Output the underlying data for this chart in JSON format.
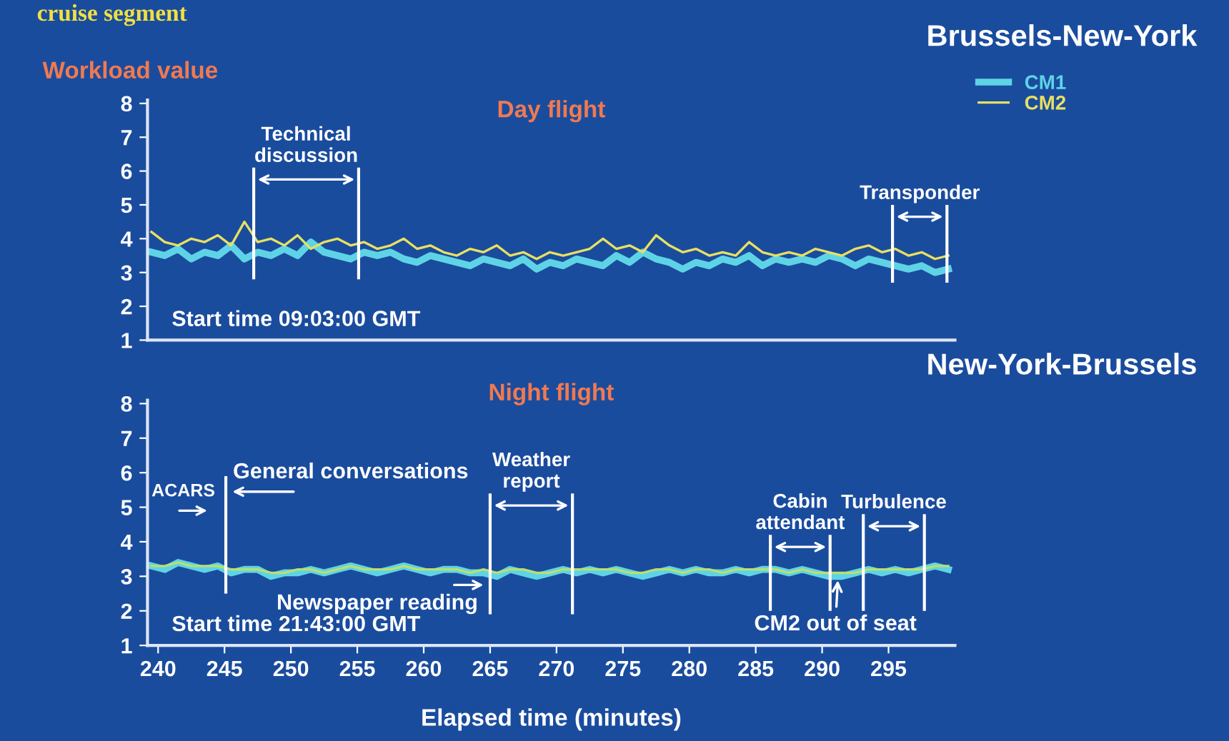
{
  "chart_data": [
    {
      "type": "line",
      "title": "Brussels-New-York",
      "subtitle": "Day flight",
      "ylabel": "Workload value",
      "annotations": [
        "cruise segment",
        "Start time 09:03:00 GMT"
      ],
      "x": [
        239.5,
        240.5,
        241.5,
        242.5,
        243.5,
        244.5,
        245.5,
        246.5,
        247.5,
        248.5,
        249.5,
        250.5,
        251.5,
        252.5,
        253.5,
        254.5,
        255.5,
        256.5,
        257.5,
        258.5,
        259.5,
        260.5,
        261.5,
        262.5,
        263.5,
        264.5,
        265.5,
        266.5,
        267.5,
        268.5,
        269.5,
        270.5,
        271.5,
        272.5,
        273.5,
        274.5,
        275.5,
        276.5,
        277.5,
        278.5,
        279.5,
        280.5,
        281.5,
        282.5,
        283.5,
        284.5,
        285.5,
        286.5,
        287.5,
        288.5,
        289.5,
        290.5,
        291.5,
        292.5,
        293.5,
        294.5,
        295.5,
        296.5,
        297.5,
        298.5,
        299.5
      ],
      "series": [
        {
          "name": "CM1",
          "color": "#5fd3e6",
          "values": [
            3.6,
            3.5,
            3.7,
            3.4,
            3.6,
            3.5,
            3.8,
            3.4,
            3.6,
            3.5,
            3.7,
            3.5,
            3.9,
            3.6,
            3.5,
            3.4,
            3.6,
            3.5,
            3.6,
            3.4,
            3.3,
            3.5,
            3.4,
            3.3,
            3.2,
            3.4,
            3.3,
            3.2,
            3.4,
            3.1,
            3.3,
            3.2,
            3.4,
            3.3,
            3.2,
            3.5,
            3.3,
            3.6,
            3.4,
            3.3,
            3.1,
            3.3,
            3.2,
            3.4,
            3.3,
            3.5,
            3.2,
            3.4,
            3.3,
            3.4,
            3.3,
            3.5,
            3.4,
            3.2,
            3.4,
            3.3,
            3.2,
            3.1,
            3.2,
            3.0,
            3.1
          ]
        },
        {
          "name": "CM2",
          "color": "#e8e060",
          "values": [
            4.2,
            3.9,
            3.8,
            4.0,
            3.9,
            4.1,
            3.8,
            4.5,
            3.9,
            4.0,
            3.8,
            4.1,
            3.7,
            3.9,
            4.0,
            3.8,
            3.9,
            3.7,
            3.8,
            4.0,
            3.7,
            3.8,
            3.6,
            3.5,
            3.7,
            3.6,
            3.8,
            3.5,
            3.6,
            3.4,
            3.6,
            3.5,
            3.6,
            3.7,
            4.0,
            3.7,
            3.8,
            3.6,
            4.1,
            3.8,
            3.6,
            3.7,
            3.5,
            3.6,
            3.5,
            3.9,
            3.6,
            3.5,
            3.6,
            3.5,
            3.7,
            3.6,
            3.5,
            3.7,
            3.8,
            3.6,
            3.7,
            3.5,
            3.6,
            3.4,
            3.5
          ]
        }
      ],
      "ref_lines": [
        {
          "axis": "x",
          "value": 247.2,
          "label": "Technical\ndiscussion"
        },
        {
          "axis": "x",
          "value": 255.1
        },
        {
          "axis": "x",
          "value": 295.3,
          "label": "Transponder"
        },
        {
          "axis": "x",
          "value": 299.4
        }
      ],
      "xlim": [
        239.2,
        300
      ],
      "ylim": [
        1,
        8.1
      ],
      "yticks": [
        1,
        2,
        3,
        4,
        5,
        6,
        7,
        8
      ],
      "tick_labels": "y",
      "legend": "top right"
    },
    {
      "type": "line",
      "title": "New-York-Brussels",
      "subtitle": "Night flight",
      "xlabel": "Elapsed time (minutes)",
      "annotations": [
        "Start time 21:43:00 GMT",
        "ACARS",
        "General conversations",
        "Newspaper reading",
        {
          "text": "CM2 out of seat",
          "x": 291.2,
          "y": 3.0
        }
      ],
      "x": [
        239.5,
        240.5,
        241.5,
        242.5,
        243.5,
        244.5,
        245.5,
        246.5,
        247.5,
        248.5,
        249.5,
        250.5,
        251.5,
        252.5,
        253.5,
        254.5,
        255.5,
        256.5,
        257.5,
        258.5,
        259.5,
        260.5,
        261.5,
        262.5,
        263.5,
        264.5,
        265.5,
        266.5,
        267.5,
        268.5,
        269.5,
        270.5,
        271.5,
        272.5,
        273.5,
        274.5,
        275.5,
        276.5,
        277.5,
        278.5,
        279.5,
        280.5,
        281.5,
        282.5,
        283.5,
        284.5,
        285.5,
        286.5,
        287.5,
        288.5,
        289.5,
        290.5,
        291.5,
        292.5,
        293.5,
        294.5,
        295.5,
        296.5,
        297.5,
        298.5,
        299.5
      ],
      "series": [
        {
          "color": "#5fd3e6",
          "values": [
            3.3,
            3.2,
            3.4,
            3.3,
            3.2,
            3.3,
            3.1,
            3.2,
            3.2,
            3.0,
            3.1,
            3.1,
            3.2,
            3.1,
            3.2,
            3.3,
            3.2,
            3.1,
            3.2,
            3.3,
            3.2,
            3.1,
            3.2,
            3.2,
            3.1,
            3.1,
            3.0,
            3.2,
            3.1,
            3.0,
            3.1,
            3.2,
            3.1,
            3.2,
            3.1,
            3.2,
            3.1,
            3.0,
            3.1,
            3.2,
            3.1,
            3.2,
            3.1,
            3.1,
            3.2,
            3.1,
            3.2,
            3.2,
            3.1,
            3.2,
            3.1,
            3.0,
            3.0,
            3.1,
            3.2,
            3.1,
            3.2,
            3.1,
            3.2,
            3.3,
            3.2
          ]
        },
        {
          "color": "#b8e070",
          "values": [
            3.3,
            3.3,
            3.4,
            3.3,
            3.3,
            3.3,
            3.2,
            3.2,
            3.2,
            3.1,
            3.1,
            3.2,
            3.2,
            3.1,
            3.2,
            3.3,
            3.2,
            3.2,
            3.2,
            3.3,
            3.2,
            3.2,
            3.2,
            3.2,
            3.1,
            3.2,
            3.1,
            3.2,
            3.2,
            3.1,
            3.1,
            3.2,
            3.2,
            3.2,
            3.2,
            3.2,
            3.1,
            3.1,
            3.2,
            3.2,
            3.1,
            3.2,
            3.2,
            3.1,
            3.2,
            3.2,
            3.2,
            3.2,
            3.1,
            3.2,
            3.1,
            3.1,
            3.1,
            3.1,
            3.2,
            3.2,
            3.2,
            3.2,
            3.2,
            3.3,
            3.3
          ]
        }
      ],
      "ref_lines": [
        {
          "axis": "x",
          "value": 245.1
        },
        {
          "axis": "x",
          "value": 265.0,
          "label": "Weather\nreport"
        },
        {
          "axis": "x",
          "value": 271.2
        },
        {
          "axis": "x",
          "value": 286.1,
          "label": "Cabin\nattendant"
        },
        {
          "axis": "x",
          "value": 290.6
        },
        {
          "axis": "x",
          "value": 293.1,
          "label": "Turbulence"
        },
        {
          "axis": "x",
          "value": 297.7
        }
      ],
      "xlim": [
        239.2,
        300
      ],
      "ylim": [
        1,
        8.1
      ],
      "yticks": [
        1,
        2,
        3,
        4,
        5,
        6,
        7,
        8
      ],
      "xticks": [
        240,
        245,
        250,
        255,
        260,
        265,
        270,
        275,
        280,
        285,
        290,
        295
      ]
    }
  ]
}
